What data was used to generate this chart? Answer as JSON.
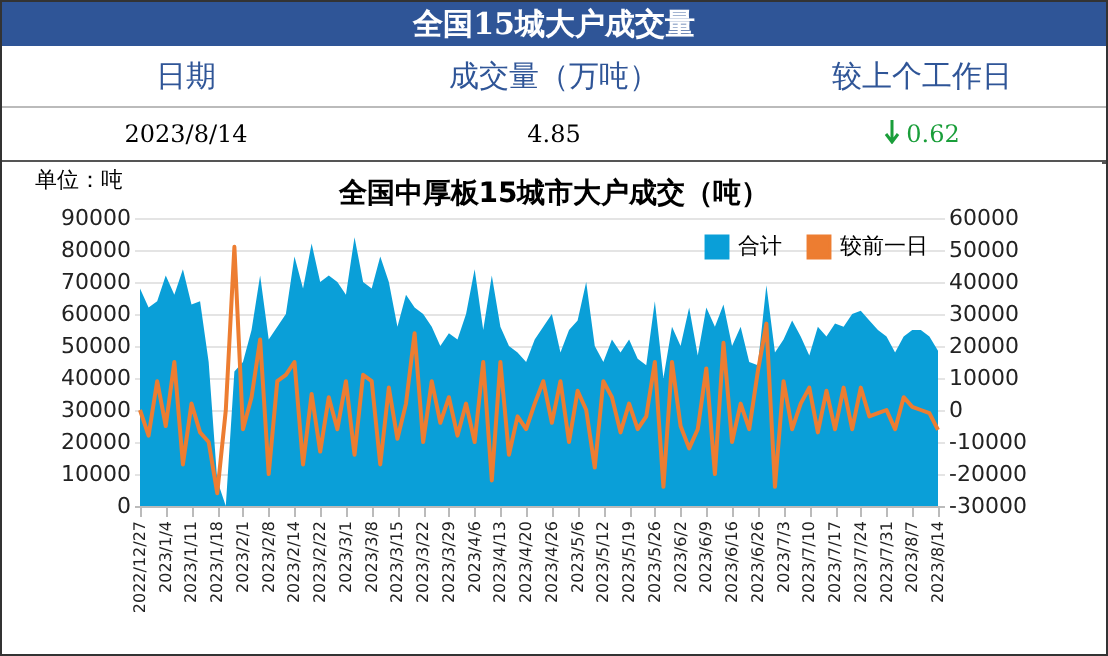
{
  "chart_data": {
    "type": "area",
    "title": "全国15城大户成交量",
    "subtitle": "全国中厚板15城市大户成交（吨）",
    "ylabel": "单位：吨",
    "annotations": [
      "日期",
      "成交量（万吨）",
      "较上个工作日",
      "2023/8/14",
      "4.85",
      "0.62"
    ],
    "categories": [
      "2022/12/27",
      null,
      null,
      "2023/1/4",
      null,
      null,
      "2023/1/11",
      null,
      null,
      "2023/1/18",
      null,
      null,
      "2023/2/1",
      null,
      null,
      "2023/2/8",
      null,
      null,
      "2023/2/14",
      null,
      null,
      "2023/2/22",
      null,
      null,
      "2023/3/1",
      null,
      null,
      "2023/3/8",
      null,
      null,
      "2023/3/15",
      null,
      null,
      "2023/3/22",
      null,
      null,
      "2023/3/29",
      null,
      null,
      "2023/4/6",
      null,
      null,
      "2023/4/13",
      null,
      null,
      "2023/4/20",
      null,
      null,
      "2023/4/26",
      null,
      null,
      "2023/5/6",
      null,
      null,
      "2023/5/12",
      null,
      null,
      "2023/5/19",
      null,
      null,
      "2023/5/26",
      null,
      null,
      "2023/6/2",
      null,
      null,
      "2023/6/9",
      null,
      null,
      "2023/6/16",
      null,
      null,
      "2023/6/26",
      null,
      null,
      "2023/7/3",
      null,
      null,
      "2023/7/10",
      null,
      null,
      "2023/7/17",
      null,
      null,
      "2023/7/24",
      null,
      null,
      "2023/7/31",
      null,
      null,
      "2023/8/7",
      null,
      null,
      "2023/8/14"
    ],
    "series": [
      {
        "name": "合计",
        "color": "#0a9fd8",
        "values": [
          68000,
          62000,
          64000,
          72000,
          66000,
          74000,
          63000,
          64000,
          45000,
          8000,
          0,
          42000,
          45000,
          55000,
          72000,
          52000,
          56000,
          60000,
          78000,
          68000,
          82000,
          70000,
          72000,
          70000,
          66000,
          84000,
          70000,
          68000,
          78000,
          70000,
          56000,
          66000,
          62000,
          60000,
          56000,
          50000,
          54000,
          52000,
          60000,
          74000,
          55000,
          72000,
          56000,
          50000,
          48000,
          45000,
          52000,
          56000,
          60000,
          48000,
          55000,
          58000,
          70000,
          50000,
          45000,
          52000,
          48000,
          52000,
          46000,
          44000,
          64000,
          40000,
          56000,
          50000,
          62000,
          47000,
          62000,
          56000,
          63000,
          50000,
          56000,
          45000,
          44000,
          69000,
          48000,
          52000,
          58000,
          53000,
          47000,
          56000,
          53000,
          57000,
          56000,
          60000,
          61000,
          58000,
          55000,
          53000,
          48000,
          53000,
          55000,
          55000,
          53000,
          48500
        ]
      },
      {
        "name": "较前一日",
        "type": "line",
        "axis": "y2",
        "color": "#ed7d31",
        "values": [
          0,
          -8000,
          9000,
          -5000,
          15000,
          -17000,
          2000,
          -7000,
          -10000,
          -26000,
          0,
          51000,
          -6000,
          4000,
          22000,
          -20000,
          9000,
          11000,
          15000,
          -17000,
          5000,
          -13000,
          4000,
          -6000,
          9000,
          -14000,
          11000,
          9000,
          -17000,
          7000,
          -9000,
          2000,
          24000,
          -10000,
          9000,
          -4000,
          4000,
          -8000,
          2000,
          -10000,
          15000,
          -22000,
          15000,
          -14000,
          -2000,
          -6000,
          2000,
          9000,
          -4000,
          9000,
          -10000,
          6000,
          0,
          -18000,
          9000,
          4000,
          -7000,
          2000,
          -6000,
          -2000,
          15000,
          -24000,
          15000,
          -5000,
          -12000,
          -6000,
          13000,
          -20000,
          21000,
          -10000,
          2000,
          -6000,
          12000,
          27000,
          -24000,
          9000,
          -6000,
          2000,
          7000,
          -7000,
          6000,
          -6000,
          7000,
          -6000,
          7000,
          -2000,
          -1000,
          0,
          -6000,
          4000,
          1000,
          0,
          -1000,
          -6200
        ]
      }
    ],
    "ylim": [
      0,
      90000
    ],
    "yticks": [
      0,
      10000,
      20000,
      30000,
      40000,
      50000,
      60000,
      70000,
      80000,
      90000
    ],
    "y2lim": [
      -30000,
      60000
    ],
    "y2ticks": [
      -30000,
      -20000,
      -10000,
      0,
      10000,
      20000,
      30000,
      40000,
      50000,
      60000
    ],
    "grid": "y",
    "legend": "top right"
  }
}
